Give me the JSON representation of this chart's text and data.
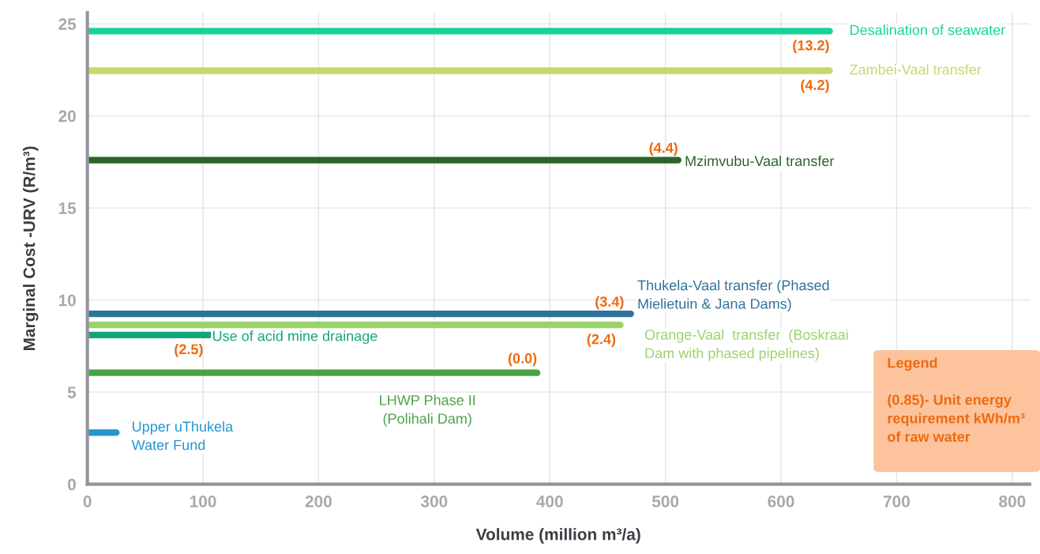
{
  "chart_data": {
    "type": "line",
    "xlabel": "Volume (million m³/a)",
    "ylabel": "Marginal Cost -URV (R/m³)",
    "xlim": [
      0,
      815
    ],
    "ylim": [
      0,
      25.6
    ],
    "xticks": [
      0,
      100,
      200,
      300,
      400,
      500,
      600,
      700,
      800
    ],
    "yticks": [
      0,
      5,
      10,
      15,
      20,
      25
    ],
    "grid": true,
    "line_style": "solid",
    "marker": "none",
    "series": [
      {
        "name": "Desalination of seawater",
        "color": "#17d39b",
        "x": [
          0,
          642
        ],
        "values": [
          24.6,
          24.6
        ]
      },
      {
        "name": "Zambei-Vaal transfer",
        "color": "#c8d86a",
        "x": [
          0,
          642
        ],
        "values": [
          22.45,
          22.45
        ]
      },
      {
        "name": "Mzimvubu-Vaal transfer",
        "color": "#2c6427",
        "x": [
          0,
          511
        ],
        "values": [
          17.6,
          17.6
        ]
      },
      {
        "name": "Thukela-Vaal transfer (Phased\nMielietuin & Jana Dams)",
        "color": "#2e7399",
        "x": [
          0,
          470
        ],
        "values": [
          9.25,
          9.25
        ]
      },
      {
        "name": "Orange-Vaal  transfer  (Boskraai\nDam with phased pipelines)",
        "color": "#9ad36a",
        "x": [
          0,
          461
        ],
        "values": [
          8.65,
          8.65
        ]
      },
      {
        "name": "Use of acid mine drainage",
        "color": "#13a57a",
        "x": [
          0,
          106
        ],
        "values": [
          8.1,
          8.1
        ]
      },
      {
        "name": "LHWP Phase II\n(Polihali Dam)",
        "color": "#4aa345",
        "x": [
          0,
          389
        ],
        "values": [
          6.05,
          6.05
        ]
      },
      {
        "name": "Upper uThukela\nWater Fund",
        "color": "#2196d0",
        "x": [
          0,
          25
        ],
        "values": [
          2.8,
          2.8
        ]
      }
    ],
    "annotations": [
      {
        "text": "(13.2)",
        "x": 642,
        "y": 24.6
      },
      {
        "text": "(4.2)",
        "x": 642,
        "y": 22.45
      },
      {
        "text": "(4.4)",
        "x": 511,
        "y": 17.6
      },
      {
        "text": "(3.4)",
        "x": 470,
        "y": 9.25
      },
      {
        "text": "(2.4)",
        "x": 461,
        "y": 8.65
      },
      {
        "text": "(2.5)",
        "x": 106,
        "y": 8.1
      },
      {
        "text": "(0.0)",
        "x": 389,
        "y": 6.05
      },
      "Legend\n\n(0.85)- Unit energy\nrequirement kWh/m³\nof raw water"
    ]
  }
}
